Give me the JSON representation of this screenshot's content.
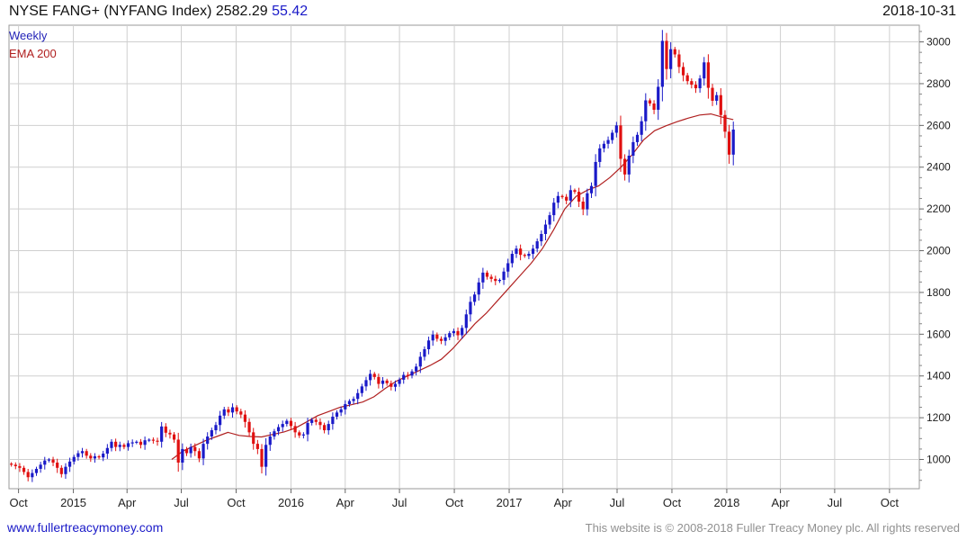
{
  "header": {
    "title": "NYSE FANG+ (NYFANG Index) 2582.29",
    "change": "55.42",
    "date": "2018-10-31"
  },
  "legend": {
    "series1": "Weekly",
    "series2": "EMA 200"
  },
  "footer": {
    "site": "www.fullertreacymoney.com",
    "copyright": "This website is © 2008-2018 Fuller Treacy Money plc. All rights reserved"
  },
  "colors": {
    "up": "#1a1ac8",
    "down": "#e01010",
    "ema": "#b02020",
    "grid": "#cfcfcf"
  },
  "chart_data": {
    "type": "candlestick",
    "x_range": [
      "2014-09-15",
      "2018-11-20"
    ],
    "y_scale": "linear",
    "ylim": [
      860,
      3080
    ],
    "y_ticks": [
      1000,
      1200,
      1400,
      1600,
      1800,
      2000,
      2200,
      2400,
      2600,
      2800,
      3000
    ],
    "x_ticks": [
      {
        "label": "Oct",
        "date": "2014-10-01"
      },
      {
        "label": "2015",
        "date": "2015-01-01"
      },
      {
        "label": "Apr",
        "date": "2015-04-01"
      },
      {
        "label": "Jul",
        "date": "2015-07-01"
      },
      {
        "label": "Oct",
        "date": "2015-10-01"
      },
      {
        "label": "2016",
        "date": "2016-01-01"
      },
      {
        "label": "Apr",
        "date": "2016-04-01"
      },
      {
        "label": "Jul",
        "date": "2016-07-01"
      },
      {
        "label": "Oct",
        "date": "2016-10-01"
      },
      {
        "label": "2017",
        "date": "2017-01-01"
      },
      {
        "label": "Apr",
        "date": "2017-04-01"
      },
      {
        "label": "Jul",
        "date": "2017-07-01"
      },
      {
        "label": "Oct",
        "date": "2017-10-01"
      },
      {
        "label": "2018",
        "date": "2018-01-01"
      },
      {
        "label": "Apr",
        "date": "2018-04-01"
      },
      {
        "label": "Jul",
        "date": "2018-07-01"
      },
      {
        "label": "Oct",
        "date": "2018-10-01"
      }
    ],
    "grid": true,
    "axis_position": "right",
    "series": [
      {
        "name": "Weekly",
        "kind": "ohlc",
        "start_date": "2014-09-19",
        "interval_days": 7,
        "closes": [
          975,
          968,
          960,
          940,
          915,
          935,
          955,
          975,
          995,
          1000,
          985,
          960,
          930,
          965,
          990,
          1012,
          1030,
          1040,
          1018,
          1005,
          1015,
          1010,
          1028,
          1055,
          1085,
          1060,
          1070,
          1060,
          1078,
          1082,
          1085,
          1070,
          1092,
          1095,
          1090,
          1085,
          1158,
          1128,
          1120,
          1095,
          985,
          1050,
          1030,
          1060,
          1040,
          1005,
          1075,
          1110,
          1140,
          1165,
          1210,
          1240,
          1225,
          1250,
          1230,
          1215,
          1180,
          1130,
          1075,
          1050,
          965,
          1070,
          1110,
          1135,
          1155,
          1170,
          1185,
          1160,
          1130,
          1115,
          1120,
          1175,
          1190,
          1180,
          1165,
          1140,
          1170,
          1205,
          1225,
          1240,
          1265,
          1280,
          1290,
          1318,
          1350,
          1380,
          1410,
          1395,
          1362,
          1378,
          1365,
          1348,
          1362,
          1382,
          1405,
          1402,
          1422,
          1445,
          1492,
          1528,
          1570,
          1598,
          1578,
          1568,
          1585,
          1605,
          1615,
          1595,
          1630,
          1695,
          1755,
          1790,
          1848,
          1895,
          1875,
          1865,
          1855,
          1860,
          1900,
          1940,
          1985,
          2010,
          1980,
          1975,
          1985,
          2010,
          2045,
          2080,
          2125,
          2170,
          2230,
          2262,
          2258,
          2240,
          2290,
          2282,
          2235,
          2198,
          2275,
          2310,
          2425,
          2490,
          2512,
          2530,
          2565,
          2600,
          2440,
          2365,
          2455,
          2520,
          2555,
          2620,
          2720,
          2705,
          2675,
          2785,
          3005,
          2870,
          2965,
          2940,
          2880,
          2840,
          2812,
          2795,
          2778,
          2825,
          2902,
          2780,
          2718,
          2745,
          2650,
          2570,
          2460,
          2580
        ]
      },
      {
        "name": "EMA 200",
        "kind": "line",
        "start_date": "2015-06-15",
        "values": [
          1000,
          1040,
          1065,
          1090,
          1110,
          1130,
          1115,
          1110,
          1108,
          1120,
          1132,
          1150,
          1180,
          1210,
          1230,
          1250,
          1262,
          1275,
          1300,
          1340,
          1375,
          1400,
          1425,
          1450,
          1480,
          1530,
          1590,
          1650,
          1700,
          1760,
          1820,
          1880,
          1940,
          2010,
          2100,
          2200,
          2260,
          2290,
          2310,
          2350,
          2400,
          2460,
          2530,
          2575,
          2598,
          2618,
          2635,
          2650,
          2655,
          2640,
          2628
        ]
      }
    ]
  }
}
